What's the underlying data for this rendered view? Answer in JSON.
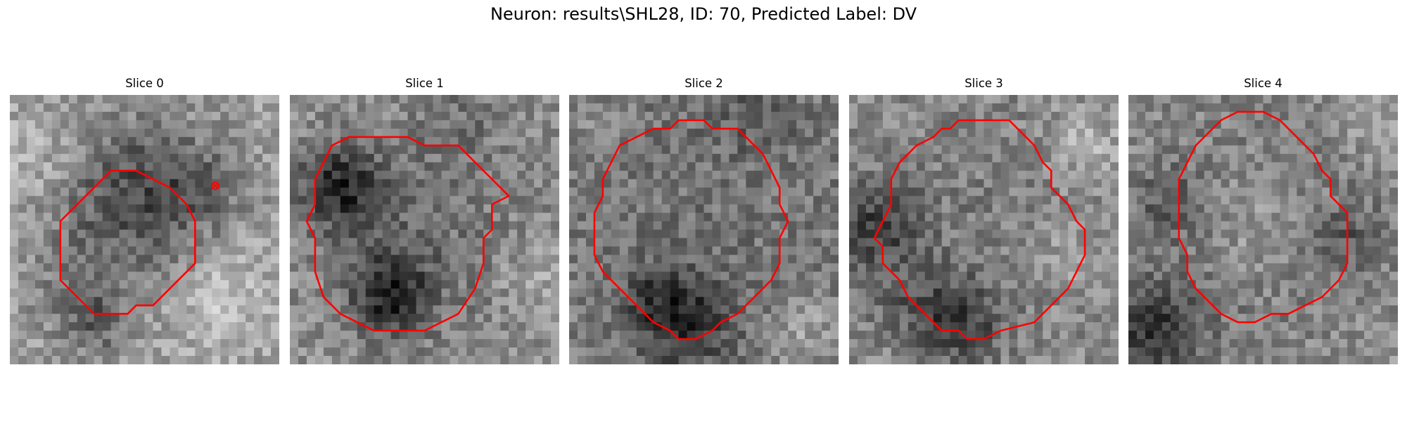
{
  "figure": {
    "title": "Neuron: results\\SHL28, ID: 70, Predicted Label: DV"
  },
  "slices": [
    {
      "label": "Slice 0"
    },
    {
      "label": "Slice 1"
    },
    {
      "label": "Slice 2"
    },
    {
      "label": "Slice 3"
    },
    {
      "label": "Slice 4"
    }
  ],
  "colors": {
    "contour": "#ff0000",
    "marker": "#ff0000",
    "background": "#ffffff"
  }
}
